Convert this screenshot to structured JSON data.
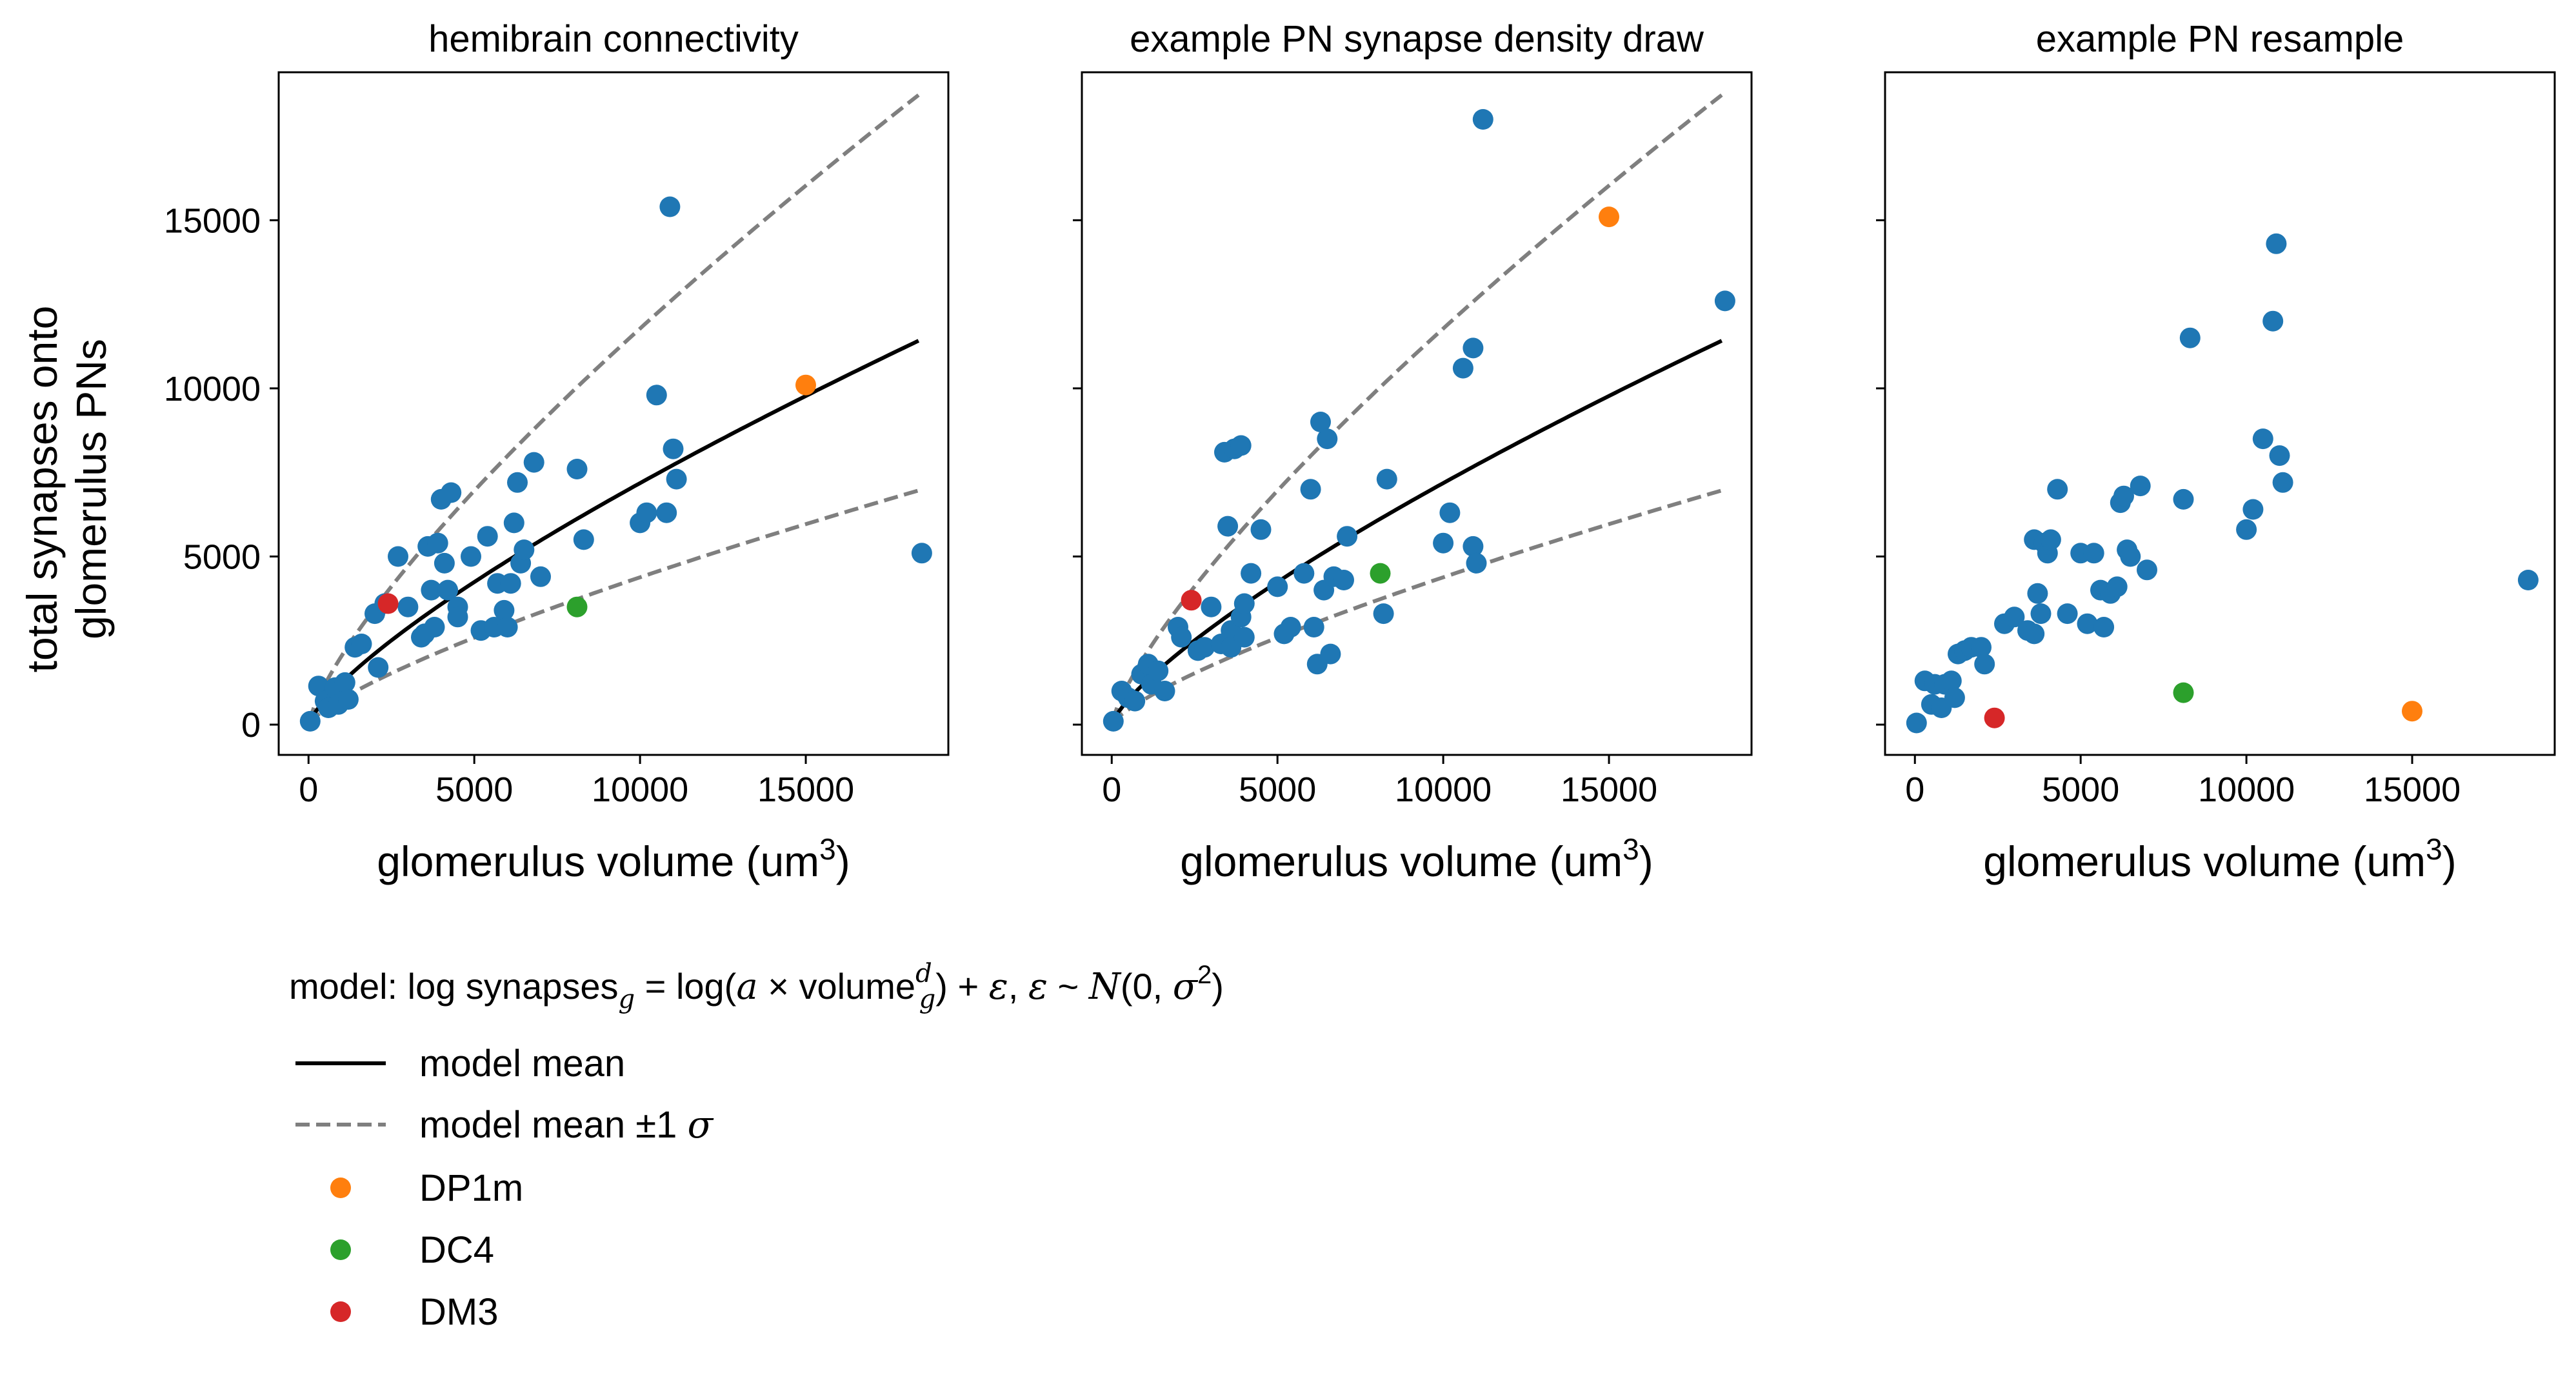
{
  "ylabel_lines": [
    "total synapses onto",
    "glomerulus PNs"
  ],
  "xlabel_text": "glomerulus volume (um",
  "xlabel_sup": "3",
  "xlabel_close": ")",
  "formula": {
    "prefix": "model: log synapses",
    "sub_g": "g",
    "mid": " = log(",
    "a": "a",
    "times": " × volume",
    "sup_d": "d",
    "sub_g2": "g",
    "suffix1": ") + ",
    "eps": "ε",
    "comma": ", ",
    "eps2": "ε",
    "sim": " ~ ",
    "N": "N",
    "args": "(0, ",
    "sigma": "σ",
    "sq": "2",
    "close": ")"
  },
  "legend": {
    "mean": "model mean",
    "band": "model mean ±1 ",
    "band_sigma": "σ",
    "DP1m": "DP1m",
    "DC4": "DC4",
    "DM3": "DM3"
  },
  "colors": {
    "points": "#1f77b4",
    "DP1m": "#ff7f0e",
    "DC4": "#2ca02c",
    "DM3": "#d62728",
    "mean": "#000000",
    "band": "#7f7f7f"
  },
  "chart_data": [
    {
      "type": "scatter",
      "title": "hemibrain connectivity",
      "xlabel": "glomerulus volume (um3)",
      "ylabel": "total synapses onto glomerulus PNs",
      "xlim": [
        -900,
        19300
      ],
      "ylim": [
        -900,
        19400
      ],
      "xticks": [
        0,
        5000,
        10000,
        15000
      ],
      "yticks": [
        0,
        5000,
        10000,
        15000
      ],
      "model_curves": true,
      "series": [
        {
          "name": "",
          "color_key": "points",
          "points": [
            [
              50,
              100
            ],
            [
              300,
              1150
            ],
            [
              500,
              700
            ],
            [
              600,
              500
            ],
            [
              800,
              1100
            ],
            [
              900,
              600
            ],
            [
              1100,
              1250
            ],
            [
              1200,
              750
            ],
            [
              1400,
              2300
            ],
            [
              1600,
              2400
            ],
            [
              2000,
              3300
            ],
            [
              2100,
              1700
            ],
            [
              2300,
              3600
            ],
            [
              2700,
              5000
            ],
            [
              3000,
              3500
            ],
            [
              3400,
              2600
            ],
            [
              3500,
              2700
            ],
            [
              3600,
              5300
            ],
            [
              3700,
              4000
            ],
            [
              3800,
              2900
            ],
            [
              3900,
              5400
            ],
            [
              4000,
              6700
            ],
            [
              4100,
              4800
            ],
            [
              4200,
              4000
            ],
            [
              4300,
              6900
            ],
            [
              4500,
              3500
            ],
            [
              4500,
              3200
            ],
            [
              4900,
              5000
            ],
            [
              5200,
              2800
            ],
            [
              5400,
              5600
            ],
            [
              5600,
              2900
            ],
            [
              5700,
              4200
            ],
            [
              5900,
              3400
            ],
            [
              6000,
              2900
            ],
            [
              6100,
              4200
            ],
            [
              6200,
              6000
            ],
            [
              6300,
              7200
            ],
            [
              6400,
              4800
            ],
            [
              6500,
              5200
            ],
            [
              6800,
              7800
            ],
            [
              7000,
              4400
            ],
            [
              8100,
              7600
            ],
            [
              8300,
              5500
            ],
            [
              10000,
              6000
            ],
            [
              10200,
              6300
            ],
            [
              10500,
              9800
            ],
            [
              10800,
              6300
            ],
            [
              11000,
              8200
            ],
            [
              11100,
              7300
            ],
            [
              10900,
              15400
            ],
            [
              18500,
              5100
            ]
          ]
        },
        {
          "name": "DP1m",
          "color_key": "DP1m",
          "points": [
            [
              15000,
              10100
            ]
          ]
        },
        {
          "name": "DC4",
          "color_key": "DC4",
          "points": [
            [
              8100,
              3500
            ]
          ]
        },
        {
          "name": "DM3",
          "color_key": "DM3",
          "points": [
            [
              2400,
              3600
            ]
          ]
        }
      ]
    },
    {
      "type": "scatter",
      "title": "example PN synapse density draw",
      "xlabel": "glomerulus volume (um3)",
      "ylabel": "",
      "xlim": [
        -900,
        19300
      ],
      "ylim": [
        -900,
        19400
      ],
      "xticks": [
        0,
        5000,
        10000,
        15000
      ],
      "yticks": [
        0,
        5000,
        10000,
        15000
      ],
      "model_curves": true,
      "series": [
        {
          "name": "",
          "color_key": "points",
          "points": [
            [
              50,
              100
            ],
            [
              300,
              1000
            ],
            [
              500,
              800
            ],
            [
              700,
              700
            ],
            [
              900,
              1500
            ],
            [
              1100,
              1800
            ],
            [
              1200,
              1200
            ],
            [
              1400,
              1600
            ],
            [
              1600,
              1000
            ],
            [
              2000,
              2900
            ],
            [
              2100,
              2600
            ],
            [
              2600,
              2200
            ],
            [
              2800,
              2300
            ],
            [
              3000,
              3500
            ],
            [
              3300,
              2400
            ],
            [
              3400,
              8100
            ],
            [
              3500,
              5900
            ],
            [
              3600,
              2800
            ],
            [
              3600,
              2300
            ],
            [
              3700,
              8200
            ],
            [
              3900,
              8300
            ],
            [
              3900,
              3200
            ],
            [
              4000,
              2600
            ],
            [
              4000,
              3600
            ],
            [
              4200,
              4500
            ],
            [
              4500,
              5800
            ],
            [
              5000,
              4100
            ],
            [
              5200,
              2700
            ],
            [
              5400,
              2900
            ],
            [
              5800,
              4500
            ],
            [
              6000,
              7000
            ],
            [
              6100,
              2900
            ],
            [
              6200,
              1800
            ],
            [
              6300,
              9000
            ],
            [
              6400,
              4000
            ],
            [
              6500,
              8500
            ],
            [
              6600,
              2100
            ],
            [
              6700,
              4400
            ],
            [
              7000,
              4300
            ],
            [
              7100,
              5600
            ],
            [
              8200,
              3300
            ],
            [
              8300,
              7300
            ],
            [
              10000,
              5400
            ],
            [
              10200,
              6300
            ],
            [
              10600,
              10600
            ],
            [
              10900,
              11200
            ],
            [
              10900,
              5300
            ],
            [
              11000,
              4800
            ],
            [
              11200,
              18000
            ],
            [
              18500,
              12600
            ]
          ]
        },
        {
          "name": "DP1m",
          "color_key": "DP1m",
          "points": [
            [
              15000,
              15100
            ]
          ]
        },
        {
          "name": "DC4",
          "color_key": "DC4",
          "points": [
            [
              8100,
              4500
            ]
          ]
        },
        {
          "name": "DM3",
          "color_key": "DM3",
          "points": [
            [
              2400,
              3700
            ]
          ]
        }
      ]
    },
    {
      "type": "scatter",
      "title": "example PN resample",
      "xlabel": "glomerulus volume (um3)",
      "ylabel": "",
      "xlim": [
        -900,
        19300
      ],
      "ylim": [
        -900,
        19400
      ],
      "xticks": [
        0,
        5000,
        10000,
        15000
      ],
      "yticks": [
        0,
        5000,
        10000,
        15000
      ],
      "model_curves": false,
      "series": [
        {
          "name": "",
          "color_key": "points",
          "points": [
            [
              50,
              50
            ],
            [
              300,
              1300
            ],
            [
              500,
              600
            ],
            [
              600,
              1200
            ],
            [
              800,
              500
            ],
            [
              900,
              1200
            ],
            [
              1100,
              1300
            ],
            [
              1200,
              800
            ],
            [
              1300,
              2100
            ],
            [
              1500,
              2200
            ],
            [
              1700,
              2300
            ],
            [
              2000,
              2300
            ],
            [
              2100,
              1800
            ],
            [
              2700,
              3000
            ],
            [
              3000,
              3200
            ],
            [
              3400,
              2800
            ],
            [
              3600,
              2700
            ],
            [
              3600,
              5500
            ],
            [
              3700,
              3900
            ],
            [
              3800,
              3300
            ],
            [
              3900,
              5400
            ],
            [
              4000,
              5100
            ],
            [
              4100,
              5500
            ],
            [
              4300,
              7000
            ],
            [
              4600,
              3300
            ],
            [
              5000,
              5100
            ],
            [
              5200,
              3000
            ],
            [
              5400,
              5100
            ],
            [
              5600,
              4000
            ],
            [
              5700,
              2900
            ],
            [
              5900,
              3900
            ],
            [
              6100,
              4100
            ],
            [
              6200,
              6600
            ],
            [
              6300,
              6800
            ],
            [
              6400,
              5200
            ],
            [
              6500,
              5000
            ],
            [
              6800,
              7100
            ],
            [
              7000,
              4600
            ],
            [
              8100,
              6700
            ],
            [
              8300,
              11500
            ],
            [
              10000,
              5800
            ],
            [
              10200,
              6400
            ],
            [
              10500,
              8500
            ],
            [
              10800,
              12000
            ],
            [
              10900,
              14300
            ],
            [
              11000,
              8000
            ],
            [
              11100,
              7200
            ],
            [
              18500,
              4300
            ]
          ]
        },
        {
          "name": "DP1m",
          "color_key": "DP1m",
          "points": [
            [
              15000,
              400
            ]
          ]
        },
        {
          "name": "DC4",
          "color_key": "DC4",
          "points": [
            [
              8100,
              950
            ]
          ]
        },
        {
          "name": "DM3",
          "color_key": "DM3",
          "points": [
            [
              2400,
              200
            ]
          ]
        }
      ]
    }
  ]
}
